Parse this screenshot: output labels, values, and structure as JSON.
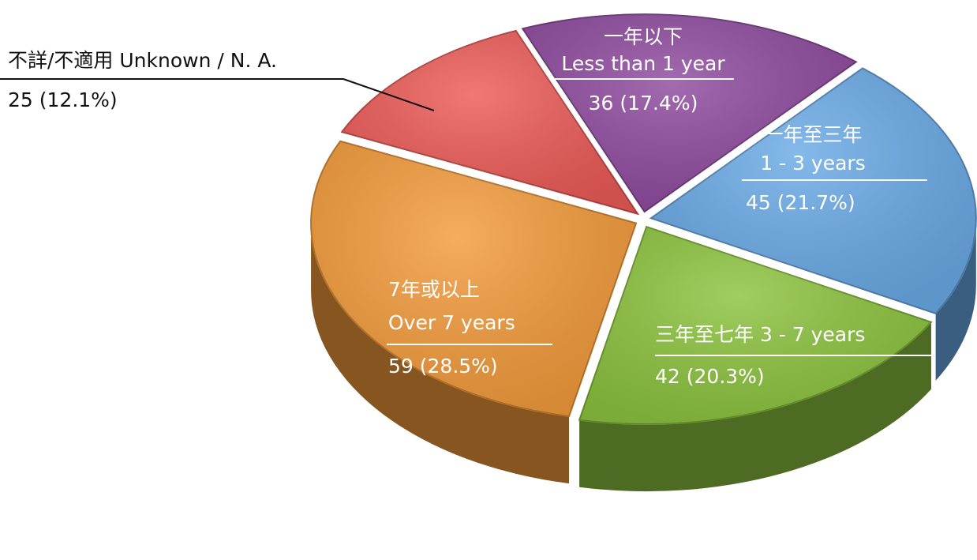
{
  "chart_data": {
    "type": "pie",
    "categories": [
      [
        "一年以下",
        "Less than 1 year"
      ],
      [
        "一年至三年",
        "1 - 3 years"
      ],
      [
        "三年至七年 3 - 7 years"
      ],
      [
        "7年或以上",
        "Over 7 years"
      ],
      [
        "不詳/不適用 Unknown / N. A."
      ]
    ],
    "values": [
      36,
      45,
      42,
      59,
      25
    ],
    "value_labels": [
      "36 (17.4%)",
      "45 (21.7%)",
      "42 (20.3%)",
      "59 (28.5%)",
      "25 (12.1%)"
    ],
    "colors": [
      "#8e4a9e",
      "#6aaae6",
      "#8cc33e",
      "#f39b3b",
      "#ec5b57"
    ]
  }
}
